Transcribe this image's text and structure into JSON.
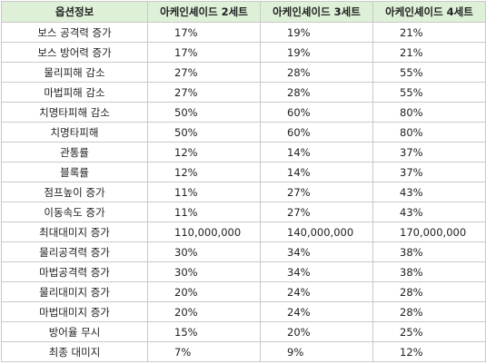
{
  "table": {
    "headers": [
      "옵션정보",
      "아케인셰이드 2세트",
      "아케인셰이드 3세트",
      "아케인셰이드 4세트"
    ],
    "rows": [
      [
        "보스 공격력 증가",
        "17%",
        "19%",
        "21%"
      ],
      [
        "보스 방어력 증가",
        "17%",
        "19%",
        "21%"
      ],
      [
        "물리피해 감소",
        "27%",
        "28%",
        "55%"
      ],
      [
        "마법피해 감소",
        "27%",
        "28%",
        "55%"
      ],
      [
        "치명타피해 감소",
        "50%",
        "60%",
        "80%"
      ],
      [
        "치명타피해",
        "50%",
        "60%",
        "80%"
      ],
      [
        "관통률",
        "12%",
        "14%",
        "37%"
      ],
      [
        "블록률",
        "12%",
        "14%",
        "37%"
      ],
      [
        "점프높이 증가",
        "11%",
        "27%",
        "43%"
      ],
      [
        "이동속도 증가",
        "11%",
        "27%",
        "43%"
      ],
      [
        "최대대미지 증가",
        "110,000,000",
        "140,000,000",
        "170,000,000"
      ],
      [
        "물리공격력 증가",
        "30%",
        "34%",
        "38%"
      ],
      [
        "마법공격력 증가",
        "30%",
        "34%",
        "38%"
      ],
      [
        "물리대미지 증가",
        "20%",
        "24%",
        "28%"
      ],
      [
        "마법대미지 증가",
        "20%",
        "24%",
        "28%"
      ],
      [
        "방어율 무시",
        "15%",
        "20%",
        "25%"
      ],
      [
        "최종 대미지",
        "7%",
        "9%",
        "12%"
      ]
    ]
  }
}
